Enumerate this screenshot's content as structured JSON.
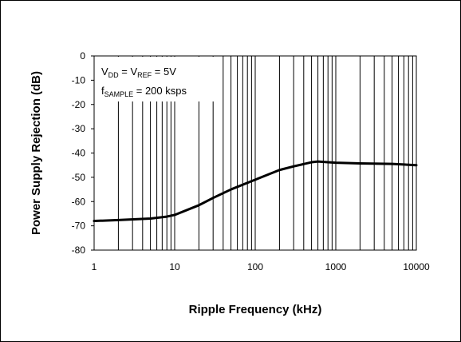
{
  "chart_data": {
    "type": "line",
    "xlabel": "Ripple Frequency (kHz)",
    "ylabel": "Power Supply Rejection (dB)",
    "xscale": "log",
    "xlim": [
      1,
      10000
    ],
    "ylim": [
      -80,
      0
    ],
    "x_ticks": [
      "1",
      "10",
      "100",
      "1000",
      "10000"
    ],
    "y_ticks": [
      "0",
      "-10",
      "-20",
      "-30",
      "-40",
      "-50",
      "-60",
      "-70",
      "-80"
    ],
    "grid": "vertical-log",
    "annotations": [
      {
        "parts": [
          [
            "V",
            ""
          ],
          [
            "DD",
            "sub"
          ],
          [
            " = V",
            ""
          ],
          [
            "REF",
            "sub"
          ],
          [
            " = 5V",
            ""
          ]
        ]
      },
      {
        "parts": [
          [
            "f",
            ""
          ],
          [
            "SAMPLE",
            "sub"
          ],
          [
            " = 200 ksps",
            ""
          ]
        ]
      }
    ],
    "series": [
      {
        "x": [
          1,
          2,
          5,
          8,
          10,
          20,
          30,
          50,
          100,
          200,
          300,
          500,
          600,
          800,
          1000,
          2000,
          5000,
          10000
        ],
        "y": [
          -68,
          -67.6,
          -67,
          -66.2,
          -65.5,
          -61.5,
          -58.5,
          -55,
          -51,
          -47,
          -45.5,
          -43.8,
          -43.5,
          -43.8,
          -44,
          -44.3,
          -44.5,
          -45
        ]
      }
    ]
  }
}
